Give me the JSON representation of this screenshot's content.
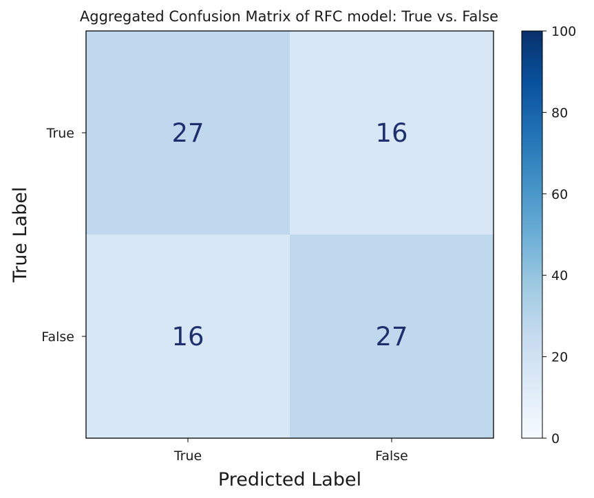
{
  "chart_data": {
    "type": "heatmap",
    "title": "Aggregated Confusion Matrix of RFC model: True vs. False",
    "xlabel": "Predicted Label",
    "ylabel": "True Label",
    "x_categories": [
      "True",
      "False"
    ],
    "y_categories": [
      "True",
      "False"
    ],
    "values": [
      [
        27,
        16
      ],
      [
        16,
        27
      ]
    ],
    "colorbar": {
      "range": [
        0,
        100
      ],
      "ticks": [
        "0",
        "20",
        "40",
        "60",
        "80",
        "100"
      ],
      "colormap": "Blues",
      "colors": [
        "#f7fbff",
        "#deebf7",
        "#c6dbef",
        "#9ecae1",
        "#6baed6",
        "#4292c6",
        "#2171b5",
        "#08519c",
        "#08306b"
      ]
    },
    "annotation_colors": {
      "dark": "#1f2f6e",
      "light": "#ffffff"
    }
  }
}
